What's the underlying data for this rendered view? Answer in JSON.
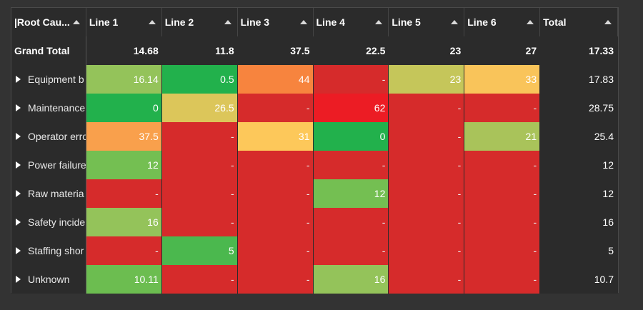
{
  "header": {
    "root_label": "|Root Cau...",
    "columns": [
      "Line 1",
      "Line 2",
      "Line 3",
      "Line 4",
      "Line 5",
      "Line 6"
    ],
    "total_label": "Total"
  },
  "grand_total": {
    "label": "Grand Total",
    "values": [
      "14.68",
      "11.8",
      "37.5",
      "22.5",
      "23",
      "27"
    ],
    "total": "17.33"
  },
  "rows": [
    {
      "label": "Equipment b",
      "values": [
        "16.14",
        "0.5",
        "44",
        "-",
        "23",
        "33"
      ],
      "colors": [
        "#94c35a",
        "#22b14c",
        "#f7843e",
        "#d62b2b",
        "#c5c65a",
        "#f9c45a"
      ],
      "total": "17.83"
    },
    {
      "label": "Maintenance",
      "values": [
        "0",
        "26.5",
        "-",
        "62",
        "-",
        "-"
      ],
      "colors": [
        "#22b14c",
        "#dcc65a",
        "#d62b2b",
        "#ec1c24",
        "#d62b2b",
        "#d62b2b"
      ],
      "total": "28.75"
    },
    {
      "label": "Operator erro",
      "values": [
        "37.5",
        "-",
        "31",
        "0",
        "-",
        "21"
      ],
      "colors": [
        "#f9a04c",
        "#d62b2b",
        "#fdc85a",
        "#22b14c",
        "#d62b2b",
        "#a9c35a"
      ],
      "total": "25.4"
    },
    {
      "label": "Power failure",
      "values": [
        "12",
        "-",
        "-",
        "-",
        "-",
        "-"
      ],
      "colors": [
        "#74bf52",
        "#d62b2b",
        "#d62b2b",
        "#d62b2b",
        "#d62b2b",
        "#d62b2b"
      ],
      "total": "12"
    },
    {
      "label": "Raw materia",
      "values": [
        "-",
        "-",
        "-",
        "12",
        "-",
        "-"
      ],
      "colors": [
        "#d62b2b",
        "#d62b2b",
        "#d62b2b",
        "#74bf52",
        "#d62b2b",
        "#d62b2b"
      ],
      "total": "12"
    },
    {
      "label": "Safety incide",
      "values": [
        "16",
        "-",
        "-",
        "-",
        "-",
        "-"
      ],
      "colors": [
        "#94c35a",
        "#d62b2b",
        "#d62b2b",
        "#d62b2b",
        "#d62b2b",
        "#d62b2b"
      ],
      "total": "16"
    },
    {
      "label": "Staffing shor",
      "values": [
        "-",
        "5",
        "-",
        "-",
        "-",
        "-"
      ],
      "colors": [
        "#d62b2b",
        "#4bb84e",
        "#d62b2b",
        "#d62b2b",
        "#d62b2b",
        "#d62b2b"
      ],
      "total": "5"
    },
    {
      "label": "Unknown",
      "values": [
        "10.11",
        "-",
        "-",
        "16",
        "-",
        "-"
      ],
      "colors": [
        "#6cbd50",
        "#d62b2b",
        "#d62b2b",
        "#94c35a",
        "#d62b2b",
        "#d62b2b"
      ],
      "total": "10.7"
    }
  ]
}
